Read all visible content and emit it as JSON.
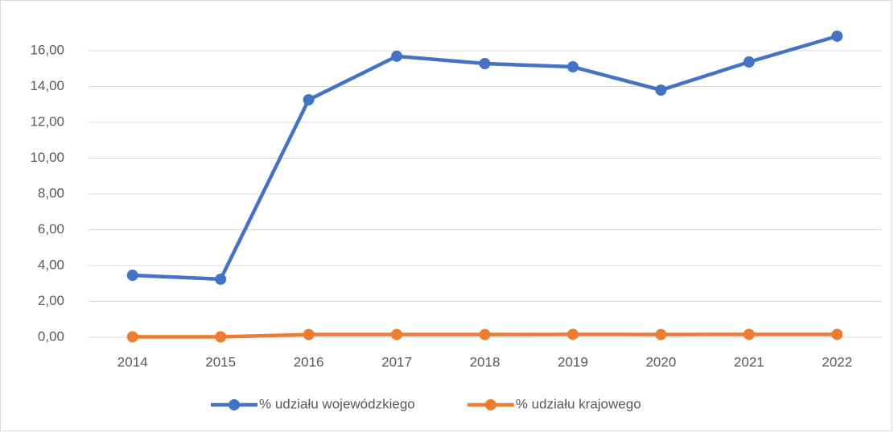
{
  "chart_data": {
    "type": "line",
    "categories": [
      "2014",
      "2015",
      "2016",
      "2017",
      "2018",
      "2019",
      "2020",
      "2021",
      "2022"
    ],
    "series": [
      {
        "name": "% udziału wojewódzkiego",
        "color": "#4472c4",
        "values": [
          3.46,
          3.24,
          13.26,
          15.69,
          15.28,
          15.1,
          13.8,
          15.37,
          16.81
        ]
      },
      {
        "name": "% udziału krajowego",
        "color": "#ed7d31",
        "values": [
          0.02,
          0.02,
          0.15,
          0.15,
          0.15,
          0.16,
          0.15,
          0.16,
          0.16
        ]
      }
    ],
    "ylim": [
      0,
      18
    ],
    "yticks": [
      {
        "value": 0,
        "label": "0,00"
      },
      {
        "value": 2,
        "label": "2,00"
      },
      {
        "value": 4,
        "label": "4,00"
      },
      {
        "value": 6,
        "label": "6,00"
      },
      {
        "value": 8,
        "label": "8,00"
      },
      {
        "value": 10,
        "label": "10,00"
      },
      {
        "value": 12,
        "label": "12,00"
      },
      {
        "value": 14,
        "label": "14,00"
      },
      {
        "value": 16,
        "label": "16,00"
      }
    ],
    "grid": true,
    "legend": "bottom"
  }
}
